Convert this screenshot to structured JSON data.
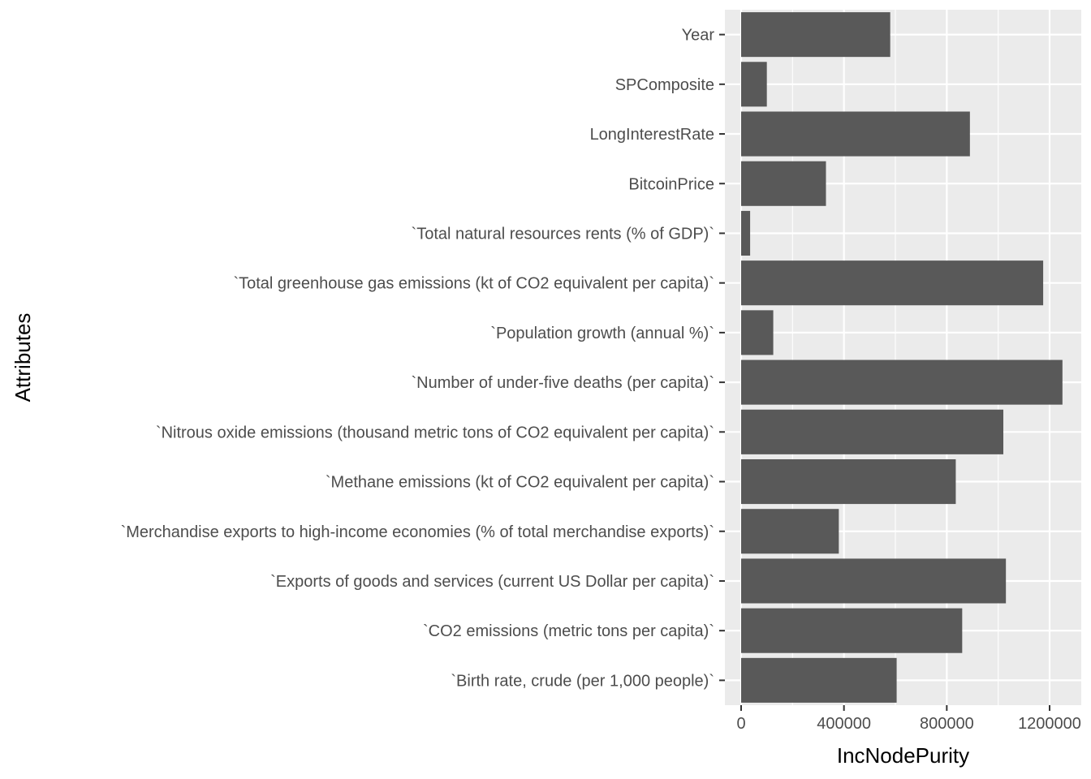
{
  "chart_data": {
    "type": "bar",
    "orientation": "horizontal",
    "xlabel": "IncNodePurity",
    "ylabel": "Attributes",
    "xlim": [
      -60000,
      1270000
    ],
    "xticks": [
      0,
      400000,
      800000,
      1200000
    ],
    "xtick_labels": [
      "0",
      "400000",
      "800000",
      "1200000"
    ],
    "grid": true,
    "legend": "none",
    "categories": [
      "Year",
      "SPComposite",
      "LongInterestRate",
      "BitcoinPrice",
      "`Total natural resources rents (% of GDP)`",
      "`Total greenhouse gas emissions (kt of CO2 equivalent per capita)`",
      "`Population growth (annual %)`",
      "`Number of under-five deaths (per capita)`",
      "`Nitrous oxide emissions (thousand metric tons of CO2 equivalent per capita)`",
      "`Methane emissions (kt of CO2 equivalent per capita)`",
      "`Merchandise exports to high-income economies (% of total merchandise exports)`",
      "`Exports of goods and services (current US Dollar per capita)`",
      "`CO2 emissions (metric tons per capita)`",
      "`Birth rate, crude (per 1,000 people)`"
    ],
    "values": [
      580000,
      100000,
      890000,
      330000,
      35000,
      1175000,
      125000,
      1250000,
      1020000,
      835000,
      380000,
      1030000,
      860000,
      605000
    ],
    "colors": {
      "bar": "#595959",
      "panel_bg": "#ebebeb",
      "grid_major": "#ffffff",
      "tick_text": "#4d4d4d",
      "tick_mark": "#333333",
      "title_text": "#000000"
    }
  }
}
